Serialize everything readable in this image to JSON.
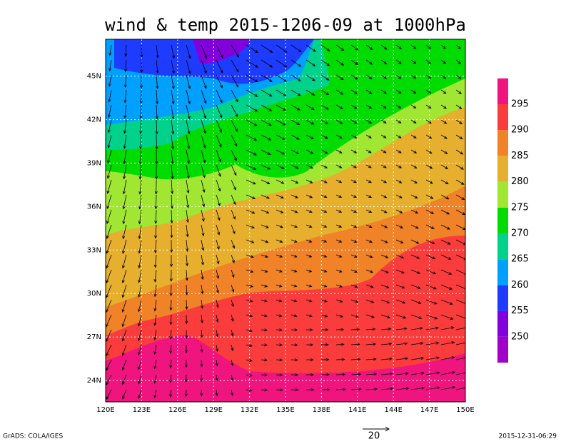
{
  "map": {
    "title": "wind & temp 2015-1206-09 at 1000hPa",
    "lon_labels": [
      "120E",
      "123E",
      "126E",
      "129E",
      "132E",
      "135E",
      "138E",
      "141E",
      "144E",
      "147E",
      "150E"
    ],
    "lat_labels": [
      "24N",
      "27N",
      "30N",
      "33N",
      "36N",
      "39N",
      "42N",
      "45N"
    ],
    "colorbar": {
      "levels": [
        250,
        255,
        260,
        265,
        270,
        275,
        280,
        285,
        290,
        295
      ],
      "colors": [
        "#a000c8",
        "#8200dc",
        "#1e3cff",
        "#00a0ff",
        "#00d28c",
        "#00dc00",
        "#a0e632",
        "#e6af2d",
        "#f08228",
        "#fa3c3c",
        "#f0147f"
      ]
    },
    "vector_reference": "20",
    "footer_left": "GrADS: COLA/IGES",
    "footer_right": "2015-12-31-06:29"
  }
}
